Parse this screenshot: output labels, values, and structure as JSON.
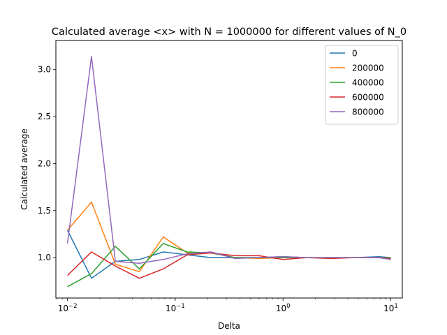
{
  "chart_data": {
    "type": "line",
    "title": "Calculated average <x> with N = 1000000 for different values of N_0",
    "xlabel": "Delta",
    "ylabel": "Calculated average",
    "xscale": "log",
    "xlim": [
      0.0078,
      12.8
    ],
    "ylim": [
      0.57,
      3.31
    ],
    "x_ticks": [
      {
        "value": 0.01,
        "base": "10",
        "exp": "−2"
      },
      {
        "value": 0.1,
        "base": "10",
        "exp": "−1"
      },
      {
        "value": 1,
        "base": "10",
        "exp": "0"
      },
      {
        "value": 10,
        "base": "10",
        "exp": "1"
      }
    ],
    "y_ticks": [
      {
        "value": 1.0,
        "label": "1.0"
      },
      {
        "value": 1.5,
        "label": "1.5"
      },
      {
        "value": 2.0,
        "label": "2.0"
      },
      {
        "value": 2.5,
        "label": "2.5"
      },
      {
        "value": 3.0,
        "label": "3.0"
      }
    ],
    "x": [
      0.01,
      0.0167,
      0.0278,
      0.0464,
      0.0774,
      0.129,
      0.215,
      0.359,
      0.599,
      1.0,
      1.67,
      2.78,
      4.64,
      7.74,
      10.0
    ],
    "legend_position": "top-right",
    "series": [
      {
        "name": "0",
        "color": "#1f77b4",
        "values": [
          1.29,
          0.78,
          0.96,
          0.98,
          1.06,
          1.03,
          1.0,
          1.0,
          1.0,
          1.01,
          1.0,
          1.0,
          1.0,
          1.01,
          1.0
        ]
      },
      {
        "name": "200000",
        "color": "#ff7f0e",
        "values": [
          1.29,
          1.59,
          0.93,
          0.85,
          1.22,
          1.05,
          1.05,
          1.0,
          0.99,
          1.0,
          1.0,
          1.0,
          1.0,
          1.0,
          0.99
        ]
      },
      {
        "name": "400000",
        "color": "#2ca02c",
        "values": [
          0.69,
          0.83,
          1.12,
          0.88,
          1.15,
          1.06,
          1.05,
          1.0,
          1.0,
          1.0,
          1.0,
          1.0,
          1.0,
          1.0,
          1.0
        ]
      },
      {
        "name": "600000",
        "color": "#d62728",
        "values": [
          0.81,
          1.06,
          0.91,
          0.78,
          0.88,
          1.03,
          1.05,
          1.02,
          1.02,
          0.98,
          1.0,
          0.99,
          1.0,
          1.0,
          0.99
        ]
      },
      {
        "name": "800000",
        "color": "#9467bd",
        "values": [
          1.15,
          3.14,
          0.96,
          0.94,
          0.98,
          1.04,
          1.06,
          0.99,
          1.0,
          1.01,
          1.0,
          1.0,
          1.0,
          1.0,
          0.98
        ]
      }
    ]
  }
}
